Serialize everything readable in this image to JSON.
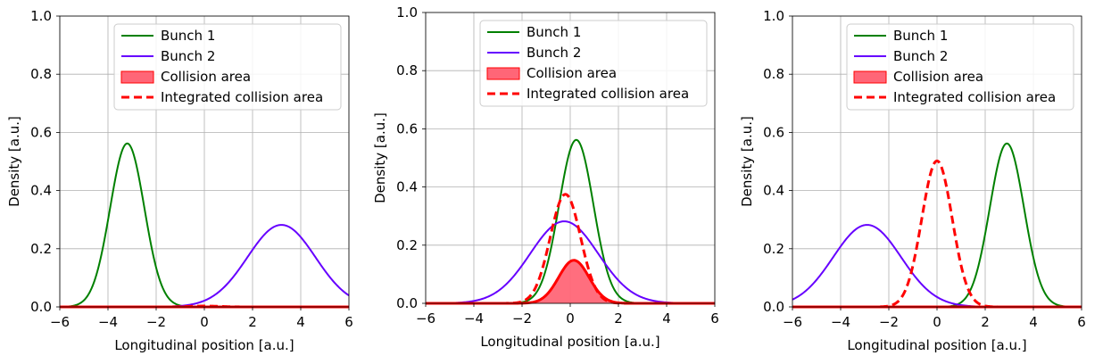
{
  "colors": {
    "bunch1": "#008000",
    "bunch2": "#6600ff",
    "collision_fill": "#ff6677",
    "collision_edge": "#ff0000",
    "integrated": "#ff0000"
  },
  "chart_data": [
    {
      "type": "line",
      "xlabel": "Longitudinal position [a.u.]",
      "ylabel": "Density [a.u.]",
      "xlim": [
        -6,
        6
      ],
      "ylim": [
        0,
        1.0
      ],
      "xticks": [
        -6,
        -4,
        -2,
        0,
        2,
        4,
        6
      ],
      "xtick_labels": [
        "−6",
        "−4",
        "−2",
        "0",
        "2",
        "4",
        "6"
      ],
      "yticks": [
        0.0,
        0.2,
        0.4,
        0.6,
        0.8,
        1.0
      ],
      "ytick_labels": [
        "0.0",
        "0.2",
        "0.4",
        "0.6",
        "0.8",
        "1.0"
      ],
      "grid": true,
      "legend_position": "top-right",
      "legend": [
        "Bunch 1",
        "Bunch 2",
        "Collision area",
        "Integrated collision area"
      ],
      "series": [
        {
          "name": "Bunch 1",
          "kind": "gaussian",
          "center": -3.2,
          "sigma": 0.71,
          "peak": 0.562
        },
        {
          "name": "Bunch 2",
          "kind": "gaussian",
          "center": 3.2,
          "sigma": 1.41,
          "peak": 0.282
        },
        {
          "name": "Collision area",
          "kind": "gaussian_fill",
          "center": 0.0,
          "sigma": 0.63,
          "peak": 0.0
        },
        {
          "name": "Integrated collision area",
          "kind": "dashed_gaussian",
          "center": 0.0,
          "sigma": 0.63,
          "peak": 0.003
        }
      ]
    },
    {
      "type": "line",
      "xlabel": "Longitudinal position [a.u.]",
      "ylabel": "Density [a.u.]",
      "xlim": [
        -6,
        6
      ],
      "ylim": [
        0,
        1.0
      ],
      "xticks": [
        -6,
        -4,
        -2,
        0,
        2,
        4,
        6
      ],
      "xtick_labels": [
        "−6",
        "−4",
        "−2",
        "0",
        "2",
        "4",
        "6"
      ],
      "yticks": [
        0.0,
        0.2,
        0.4,
        0.6,
        0.8,
        1.0
      ],
      "ytick_labels": [
        "0.0",
        "0.2",
        "0.4",
        "0.6",
        "0.8",
        "1.0"
      ],
      "grid": true,
      "legend_position": "top-right",
      "legend": [
        "Bunch 1",
        "Bunch 2",
        "Collision area",
        "Integrated collision area"
      ],
      "series": [
        {
          "name": "Bunch 1",
          "kind": "gaussian",
          "center": 0.25,
          "sigma": 0.71,
          "peak": 0.562
        },
        {
          "name": "Bunch 2",
          "kind": "gaussian",
          "center": -0.25,
          "sigma": 1.41,
          "peak": 0.282
        },
        {
          "name": "Collision area",
          "kind": "gaussian_fill",
          "center": 0.15,
          "sigma": 0.63,
          "peak": 0.148
        },
        {
          "name": "Integrated collision area",
          "kind": "dashed_gaussian",
          "center": -0.2,
          "sigma": 0.63,
          "peak": 0.375
        }
      ]
    },
    {
      "type": "line",
      "xlabel": "Longitudinal position [a.u.]",
      "ylabel": "Density [a.u.]",
      "xlim": [
        -6,
        6
      ],
      "ylim": [
        0,
        1.0
      ],
      "xticks": [
        -6,
        -4,
        -2,
        0,
        2,
        4,
        6
      ],
      "xtick_labels": [
        "−6",
        "−4",
        "−2",
        "0",
        "2",
        "4",
        "6"
      ],
      "yticks": [
        0.0,
        0.2,
        0.4,
        0.6,
        0.8,
        1.0
      ],
      "ytick_labels": [
        "0.0",
        "0.2",
        "0.4",
        "0.6",
        "0.8",
        "1.0"
      ],
      "grid": true,
      "legend_position": "top-right",
      "legend": [
        "Bunch 1",
        "Bunch 2",
        "Collision area",
        "Integrated collision area"
      ],
      "series": [
        {
          "name": "Bunch 1",
          "kind": "gaussian",
          "center": 2.9,
          "sigma": 0.71,
          "peak": 0.562
        },
        {
          "name": "Bunch 2",
          "kind": "gaussian",
          "center": -2.9,
          "sigma": 1.41,
          "peak": 0.282
        },
        {
          "name": "Collision area",
          "kind": "gaussian_fill",
          "center": 0.0,
          "sigma": 0.63,
          "peak": 0.0
        },
        {
          "name": "Integrated collision area",
          "kind": "dashed_gaussian",
          "center": 0.0,
          "sigma": 0.63,
          "peak": 0.502
        }
      ]
    }
  ]
}
